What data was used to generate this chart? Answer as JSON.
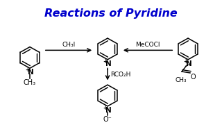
{
  "title": "Reactions of Pyridine",
  "title_color": "#0000CC",
  "title_fontsize": 11.5,
  "bg_color": "#FFFFFF",
  "line_color": "#000000",
  "arrow_left_label": "CH₃I",
  "arrow_right_label": "MeCOCl",
  "arrow_down_label": "RCO₂H",
  "ring_size": 16,
  "lw": 1.1
}
